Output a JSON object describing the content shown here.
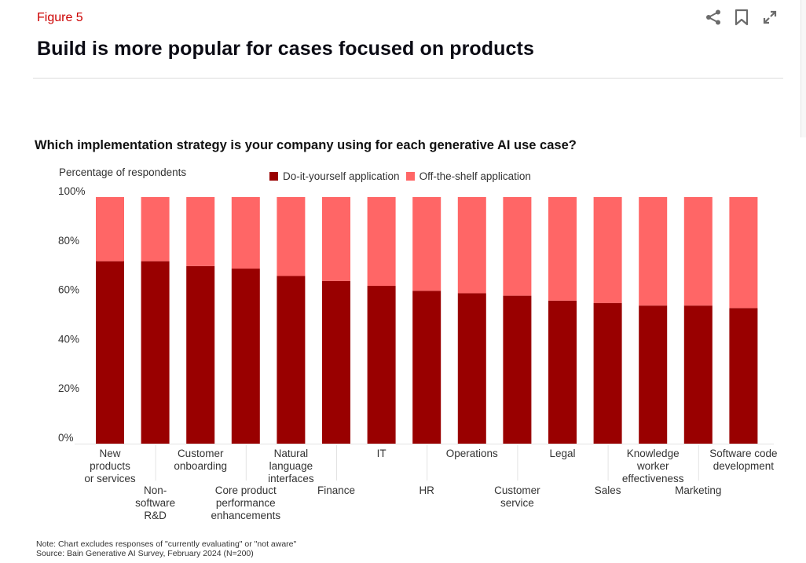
{
  "header": {
    "figure_label": "Figure 5",
    "title": "Build is more popular for cases focused on products",
    "actions": [
      {
        "name": "share-icon",
        "label": "Share"
      },
      {
        "name": "bookmark-icon",
        "label": "Bookmark"
      },
      {
        "name": "expand-icon",
        "label": "Expand"
      }
    ]
  },
  "colors": {
    "accent": "#cc0000",
    "diy": "#990000",
    "off_the_shelf": "#ff6666"
  },
  "chart_data": {
    "type": "bar",
    "stacked": true,
    "title": "Which implementation strategy is your company using for each generative AI use case?",
    "ylabel": "Percentage of respondents",
    "xlabel": "",
    "ylim": [
      0,
      100
    ],
    "yticks": [
      "0%",
      "20%",
      "40%",
      "60%",
      "80%",
      "100%"
    ],
    "ytick_values": [
      0,
      20,
      40,
      60,
      80,
      100
    ],
    "legend": [
      "Do-it-yourself application",
      "Off-the-shelf application"
    ],
    "legend_position": "top",
    "categories": [
      "New products or services",
      "Non-software R&D",
      "Customer onboarding",
      "Core product performance enhancements",
      "Natural language interfaces",
      "Finance",
      "IT",
      "HR",
      "Operations",
      "Customer service",
      "Legal",
      "Sales",
      "Knowledge worker effectiveness",
      "Marketing",
      "Software code development"
    ],
    "category_label_lines": [
      [
        "New",
        "products",
        "or services"
      ],
      [
        "Non-",
        "software",
        "R&D"
      ],
      [
        "Customer",
        "onboarding"
      ],
      [
        "Core product",
        "performance",
        "enhancements"
      ],
      [
        "Natural",
        "language",
        "interfaces"
      ],
      [
        "Finance"
      ],
      [
        "IT"
      ],
      [
        "HR"
      ],
      [
        "Operations"
      ],
      [
        "Customer",
        "service"
      ],
      [
        "Legal"
      ],
      [
        "Sales"
      ],
      [
        "Knowledge",
        "worker",
        "effectiveness"
      ],
      [
        "Marketing"
      ],
      [
        "Software code",
        "development"
      ]
    ],
    "series": [
      {
        "name": "Do-it-yourself application",
        "values": [
          74,
          74,
          72,
          71,
          68,
          66,
          64,
          62,
          61,
          60,
          58,
          57,
          56,
          56,
          55
        ]
      },
      {
        "name": "Off-the-shelf application",
        "values": [
          26,
          26,
          28,
          29,
          32,
          34,
          36,
          38,
          39,
          40,
          42,
          43,
          44,
          44,
          45
        ]
      }
    ],
    "grid": false
  },
  "footer": {
    "note": "Note: Chart excludes responses of \"currently evaluating\" or \"not aware\"",
    "source": "Source: Bain Generative AI Survey, February 2024 (N=200)"
  }
}
